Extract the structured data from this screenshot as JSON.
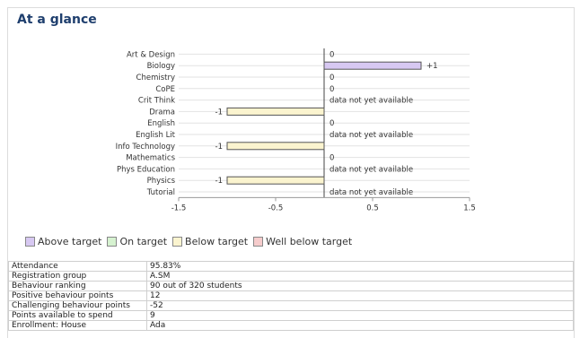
{
  "panel": {
    "title": "At a glance"
  },
  "chart_data": {
    "type": "bar",
    "orientation": "horizontal",
    "categories": [
      "Art & Design",
      "Biology",
      "Chemistry",
      "CoPE",
      "Crit Think",
      "Drama",
      "English",
      "English Lit",
      "Info Technology",
      "Mathematics",
      "Phys Education",
      "Physics",
      "Tutorial"
    ],
    "values": [
      0,
      1,
      0,
      0,
      null,
      -1,
      0,
      null,
      -1,
      0,
      null,
      -1,
      null
    ],
    "labels": [
      "0",
      "+1",
      "0",
      "0",
      "data not yet available",
      "-1",
      "0",
      "data not yet available",
      "-1",
      "0",
      "data not yet available",
      "-1",
      "data not yet available"
    ],
    "status": [
      "on",
      "above",
      "on",
      "on",
      "na",
      "below",
      "on",
      "na",
      "below",
      "on",
      "na",
      "below",
      "na"
    ],
    "xlim": [
      -1.5,
      1.5
    ],
    "xticks": [
      "-1.5",
      "-0.5",
      "0.5",
      "1.5"
    ],
    "xtick_values": [
      -1.5,
      -0.5,
      0.5,
      1.5
    ],
    "grid": true
  },
  "legend": [
    {
      "label": "Above target",
      "color": "#d7c8f2"
    },
    {
      "label": "On target",
      "color": "#d6f2d0"
    },
    {
      "label": "Below target",
      "color": "#fbf4cf"
    },
    {
      "label": "Well below target",
      "color": "#f6cccc"
    }
  ],
  "info": [
    {
      "key": "Attendance",
      "value": "95.83%"
    },
    {
      "key": "Registration group",
      "value": "A.SM"
    },
    {
      "key": "Behaviour ranking",
      "value": "90 out of 320 students"
    },
    {
      "key": "Positive behaviour points",
      "value": "12"
    },
    {
      "key": "Challenging behaviour points",
      "value": "-52"
    },
    {
      "key": "Points available to spend",
      "value": "9"
    },
    {
      "key": "Enrollment: House",
      "value": "Ada"
    }
  ]
}
